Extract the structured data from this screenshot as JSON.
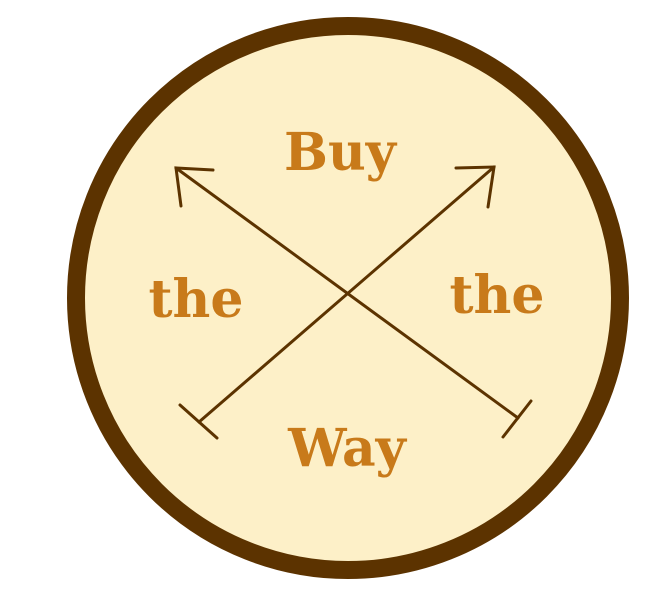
{
  "emblem": {
    "words": {
      "top": "Buy",
      "left": "the",
      "right": "the",
      "bottom": "Way"
    },
    "colors": {
      "background": "#ffffff",
      "disc_fill": "#fdf0c8",
      "ring": "#5c3300",
      "lines": "#5c3300",
      "text": "#c87a1a"
    }
  }
}
